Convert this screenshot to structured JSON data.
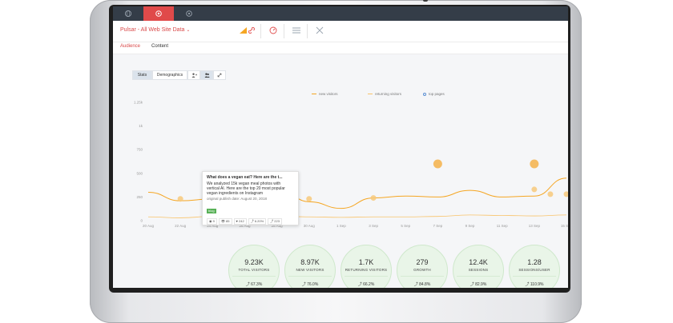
{
  "app": {
    "site_title": "Pulsar - All Web Site Data",
    "chevron": "⌄"
  },
  "topbar": {
    "tabs": [
      {
        "icon": "globe-icon",
        "active": false
      },
      {
        "icon": "gear-icon",
        "active": true
      },
      {
        "icon": "settings-icon",
        "active": false
      }
    ]
  },
  "subtabs": [
    {
      "label": "Audience",
      "active": true
    },
    {
      "label": "Content",
      "active": false
    }
  ],
  "toolbar": {
    "stats_label": "Stats",
    "demographics_label": "Demographics"
  },
  "legend": {
    "new_visitors": "new visitors",
    "returning_visitors": "returning visitors",
    "top_pages": "top pages"
  },
  "colors": {
    "accent_red": "#e04a4a",
    "orange": "#f5a623",
    "orange_light": "#f8c36a",
    "green_bubble": "#e9f5e8",
    "tag_green": "#58b157"
  },
  "chart_data": {
    "type": "line",
    "title": "",
    "xlabel": "",
    "ylabel": "",
    "x": [
      "20 Aug",
      "22 Aug",
      "24 Aug",
      "26 Aug",
      "28 Aug",
      "30 Aug",
      "1 Sep",
      "3 Sep",
      "5 Sep",
      "7 Sep",
      "9 Sep",
      "11 Sep",
      "13 Sep",
      "15 Sep"
    ],
    "y_ticks": [
      "0",
      "250",
      "500",
      "750",
      "1k",
      "1.25k"
    ],
    "ylim": [
      0,
      1250
    ],
    "grid": false,
    "legend_position": "top",
    "series": [
      {
        "name": "new visitors",
        "color": "#f5a623",
        "values": [
          300,
          210,
          230,
          320,
          360,
          200,
          130,
          240,
          260,
          250,
          320,
          250,
          260,
          450
        ]
      },
      {
        "name": "returning visitors",
        "color": "#f8c36a",
        "values": [
          40,
          30,
          45,
          60,
          50,
          40,
          35,
          40,
          40,
          45,
          60,
          55,
          50,
          60
        ]
      }
    ],
    "top_pages": [
      {
        "x": "22 Aug",
        "value": 230
      },
      {
        "x": "24 Aug",
        "value": 240
      },
      {
        "x": "30 Aug",
        "value": 230
      },
      {
        "x": "3 Sep",
        "value": 240
      },
      {
        "x": "7 Sep",
        "value": 600
      },
      {
        "x": "13 Sep",
        "value": 330
      },
      {
        "x": "13 Sep",
        "value": 600
      },
      {
        "x": "14 Sep",
        "value": 280
      },
      {
        "x": "15 Sep",
        "value": 280
      }
    ]
  },
  "tooltip": {
    "title": "What does a vegan eat? Here are the t...",
    "body": "We analyzed 15k vegan meal photos with vertical AI. Here are the top 20 most popular vegan ingredients on Instagram",
    "date": "original publish date: August 20, 2018",
    "tag": "blog",
    "stats": [
      "9",
      "85",
      "242",
      "6.20%",
      "223"
    ]
  },
  "metrics": [
    {
      "value": "9.23K",
      "label": "TOTAL VISITORS",
      "change": "67.3%"
    },
    {
      "value": "8.97K",
      "label": "NEW VISITORS",
      "change": "76.0%"
    },
    {
      "value": "1.7K",
      "label": "RETURNING VISITORS",
      "change": "66.2%"
    },
    {
      "value": "279",
      "label": "GROWTH",
      "change": "84.8%"
    },
    {
      "value": "12.4K",
      "label": "SESSIONS",
      "change": "82.9%"
    },
    {
      "value": "1.28",
      "label": "SESSIONS/USER",
      "change": "110.9%"
    }
  ]
}
